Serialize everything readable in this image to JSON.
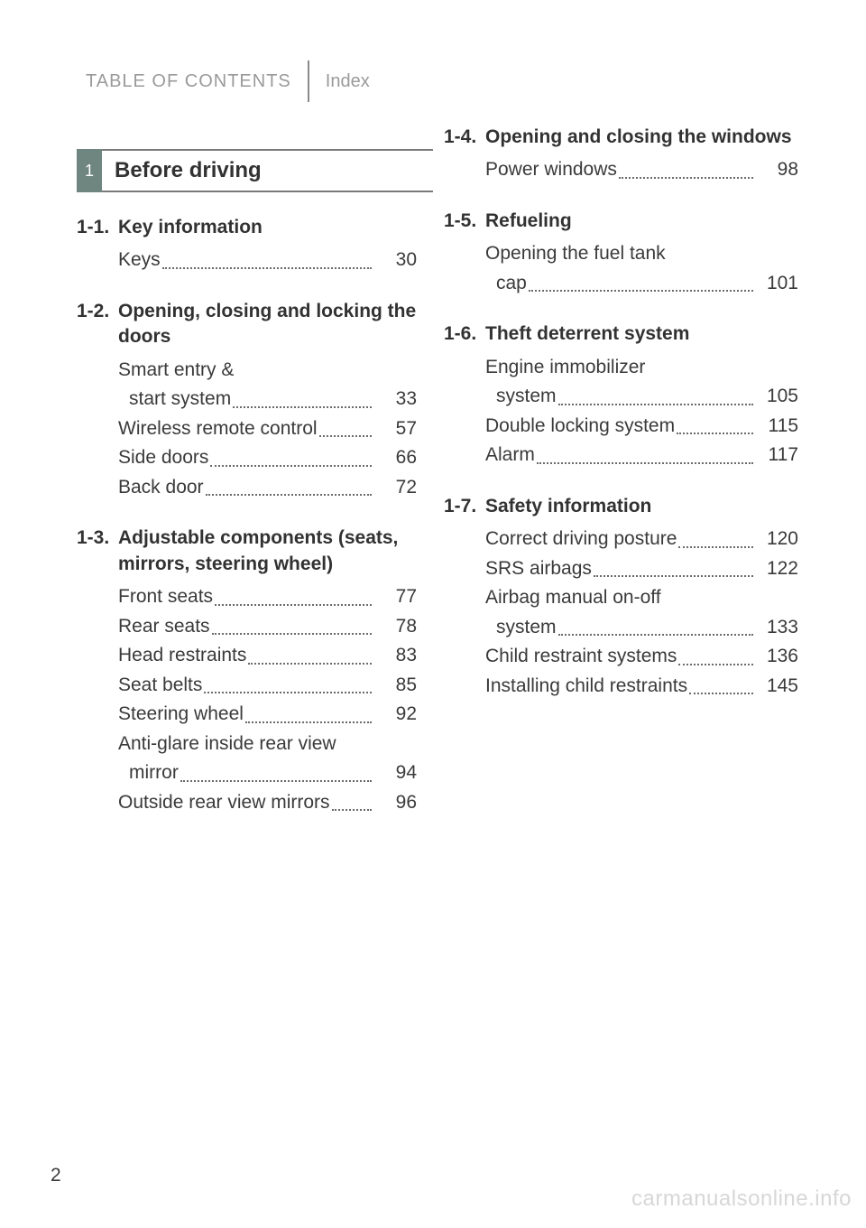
{
  "colors": {
    "header_gray": "#9a9a9a",
    "divider_gray": "#8a8a8a",
    "badge_bg": "#6f8680",
    "badge_fg": "#ffffff",
    "rule_gray": "#7a7a7a",
    "text": "#3a3a3a",
    "heading": "#323232",
    "dots": "#6a6a6a",
    "watermark": "#d7d7d7",
    "background": "#ffffff"
  },
  "typography": {
    "header_fontsize": 20,
    "chapter_fontsize": 24,
    "body_fontsize": 21,
    "font_family": "Arial"
  },
  "header": {
    "toc_label": "TABLE OF CONTENTS",
    "index_label": "Index"
  },
  "chapter": {
    "number": "1",
    "title": "Before driving"
  },
  "left_sections": [
    {
      "num": "1-1.",
      "title": "Key information",
      "entries": [
        {
          "label": "Keys",
          "page": "30"
        }
      ]
    },
    {
      "num": "1-2.",
      "title": "Opening, closing and locking the doors",
      "entries": [
        {
          "label": "Smart entry &\nstart system",
          "multiline": true,
          "page": "33"
        },
        {
          "label": "Wireless remote control",
          "page": "57"
        },
        {
          "label": "Side doors",
          "page": "66"
        },
        {
          "label": "Back door",
          "page": "72"
        }
      ]
    },
    {
      "num": "1-3.",
      "title": "Adjustable components (seats, mirrors, steering wheel)",
      "entries": [
        {
          "label": "Front seats",
          "page": "77"
        },
        {
          "label": "Rear seats",
          "page": "78"
        },
        {
          "label": "Head restraints",
          "page": "83"
        },
        {
          "label": "Seat belts",
          "page": "85"
        },
        {
          "label": "Steering wheel",
          "page": "92"
        },
        {
          "label": "Anti-glare inside rear view\nmirror",
          "multiline": true,
          "page": "94"
        },
        {
          "label": "Outside rear view mirrors",
          "page": "96"
        }
      ]
    }
  ],
  "right_sections": [
    {
      "num": "1-4.",
      "title": "Opening and closing the windows",
      "entries": [
        {
          "label": "Power windows",
          "page": "98"
        }
      ]
    },
    {
      "num": "1-5.",
      "title": "Refueling",
      "entries": [
        {
          "label": "Opening the fuel tank\ncap",
          "multiline": true,
          "page": "101"
        }
      ]
    },
    {
      "num": "1-6.",
      "title": "Theft deterrent system",
      "entries": [
        {
          "label": "Engine immobilizer\nsystem",
          "multiline": true,
          "page": "105"
        },
        {
          "label": "Double locking system",
          "page": "115"
        },
        {
          "label": "Alarm",
          "page": "117"
        }
      ]
    },
    {
      "num": "1-7.",
      "title": "Safety information",
      "entries": [
        {
          "label": "Correct driving posture",
          "page": "120"
        },
        {
          "label": "SRS airbags",
          "page": "122"
        },
        {
          "label": "Airbag manual on-off\nsystem",
          "multiline": true,
          "page": "133"
        },
        {
          "label": "Child restraint systems",
          "page": "136"
        },
        {
          "label": "Installing child restraints",
          "page": "145"
        }
      ]
    }
  ],
  "page_number": "2",
  "watermark": "carmanualsonline.info"
}
